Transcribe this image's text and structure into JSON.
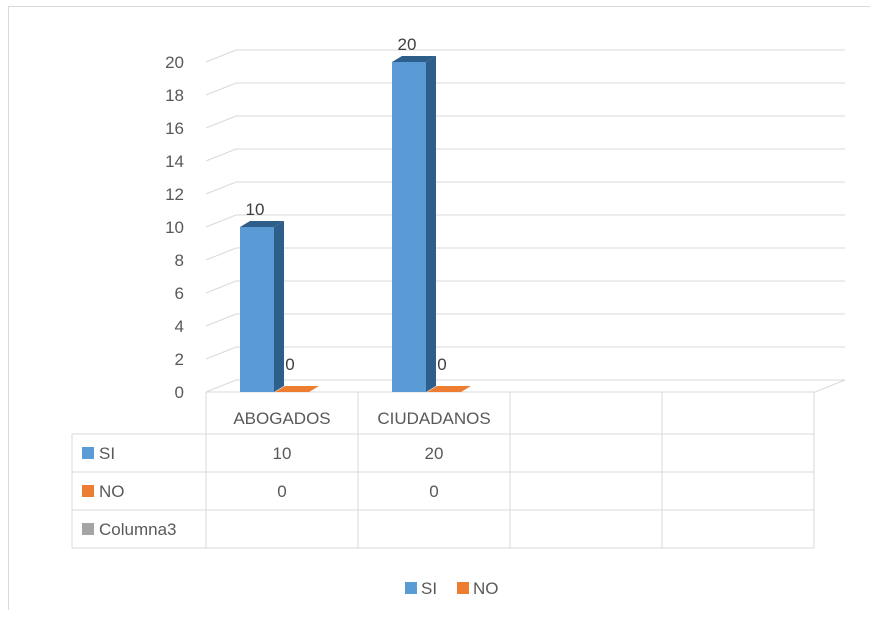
{
  "chart_data": {
    "type": "bar",
    "categories": [
      "ABOGADOS",
      "CIUDADANOS"
    ],
    "empty_columns": 2,
    "series": [
      {
        "name": "SI",
        "values": [
          10,
          20
        ],
        "color": "#5b9bd5",
        "dark": "#2e5f8a"
      },
      {
        "name": "NO",
        "values": [
          0,
          0
        ],
        "color": "#ed7d31",
        "dark": "#b5561b"
      }
    ],
    "table_rows": [
      {
        "name": "SI",
        "color": "#5b9bd5",
        "values": [
          "10",
          "20"
        ]
      },
      {
        "name": "NO",
        "color": "#ed7d31",
        "values": [
          "0",
          "0"
        ]
      },
      {
        "name": "Columna3",
        "color": "#a5a5a5",
        "values": [
          "",
          ""
        ]
      }
    ],
    "ylim": [
      0,
      20
    ],
    "y_ticks": [
      "0",
      "2",
      "4",
      "6",
      "8",
      "10",
      "12",
      "14",
      "16",
      "18",
      "20"
    ],
    "gridlines": true,
    "legend_position": "bottom",
    "legend": [
      {
        "name": "SI",
        "color": "#5b9bd5"
      },
      {
        "name": "NO",
        "color": "#ed7d31"
      }
    ]
  }
}
